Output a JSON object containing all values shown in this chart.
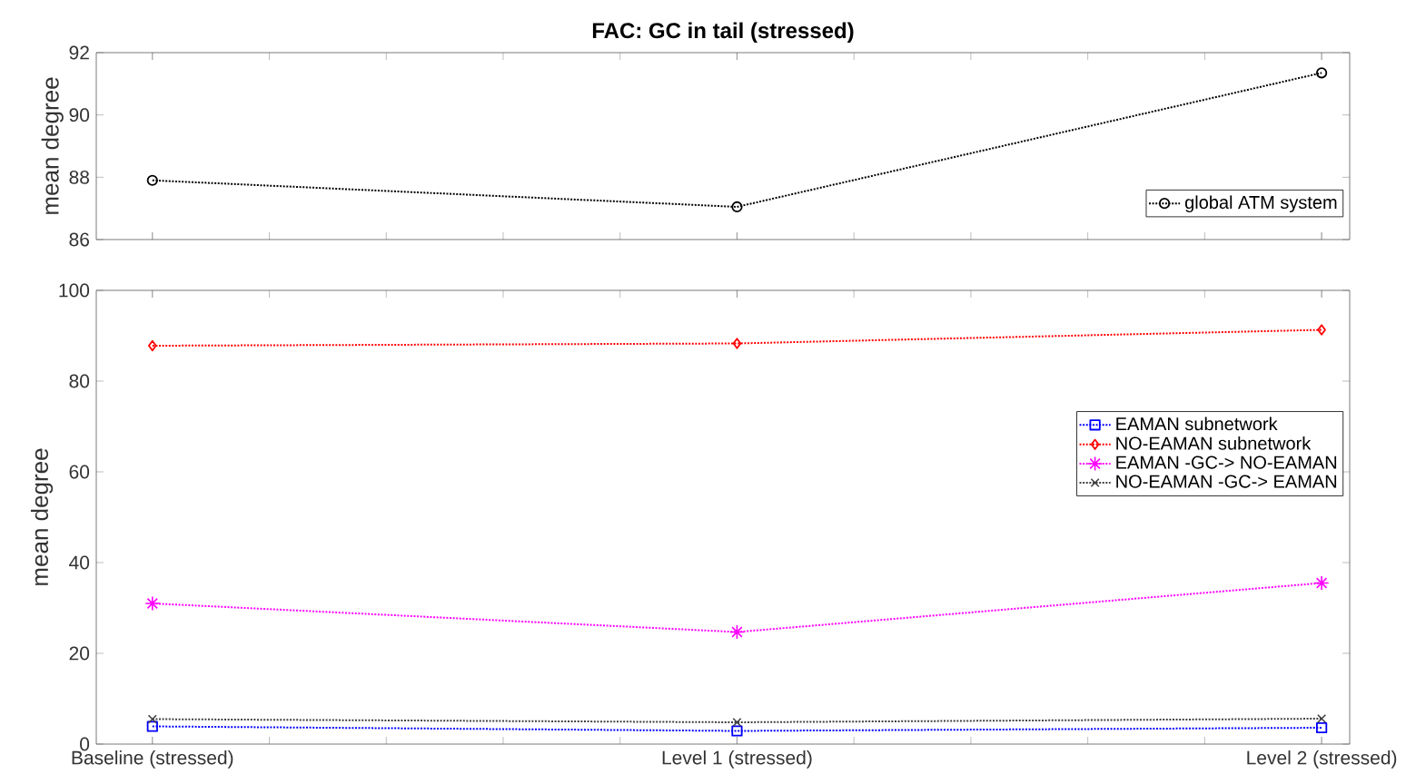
{
  "chart_data": [
    {
      "type": "line",
      "title": "FAC: GC in tail (stressed)",
      "ylabel": "mean degree",
      "categories": [
        null,
        null,
        null
      ],
      "ylim": [
        86,
        92
      ],
      "yticks": [
        86,
        88,
        90,
        92
      ],
      "tick_labels": "y",
      "legend": "bottom right",
      "grid": false,
      "line_style": "dotted",
      "series": [
        {
          "name": "global ATM system",
          "color": "#000000",
          "marker": "circle",
          "values": [
            87.9,
            87.05,
            91.35
          ]
        }
      ]
    },
    {
      "type": "line",
      "ylabel": "mean degree",
      "categories": [
        "Baseline (stressed)",
        "Level 1 (stressed)",
        "Level 2 (stressed)"
      ],
      "ylim": [
        0,
        100
      ],
      "yticks": [
        0,
        20,
        40,
        60,
        80,
        100
      ],
      "legend": "right",
      "grid": false,
      "line_style": "dotted",
      "series": [
        {
          "name": "EAMAN subnetwork",
          "color": "#0000ff",
          "marker": "square",
          "values": [
            3.9,
            2.9,
            3.6
          ]
        },
        {
          "name": "NO-EAMAN subnetwork",
          "color": "#ff0000",
          "marker": "diamond",
          "values": [
            87.8,
            88.3,
            91.3
          ]
        },
        {
          "name": "EAMAN -GC-> NO-EAMAN",
          "color": "#ff00ff",
          "marker": "star",
          "values": [
            31.0,
            24.7,
            35.5
          ]
        },
        {
          "name": "NO-EAMAN -GC-> EAMAN",
          "color": "#404040",
          "marker": "cross",
          "values": [
            5.5,
            4.8,
            5.6
          ]
        }
      ]
    }
  ]
}
